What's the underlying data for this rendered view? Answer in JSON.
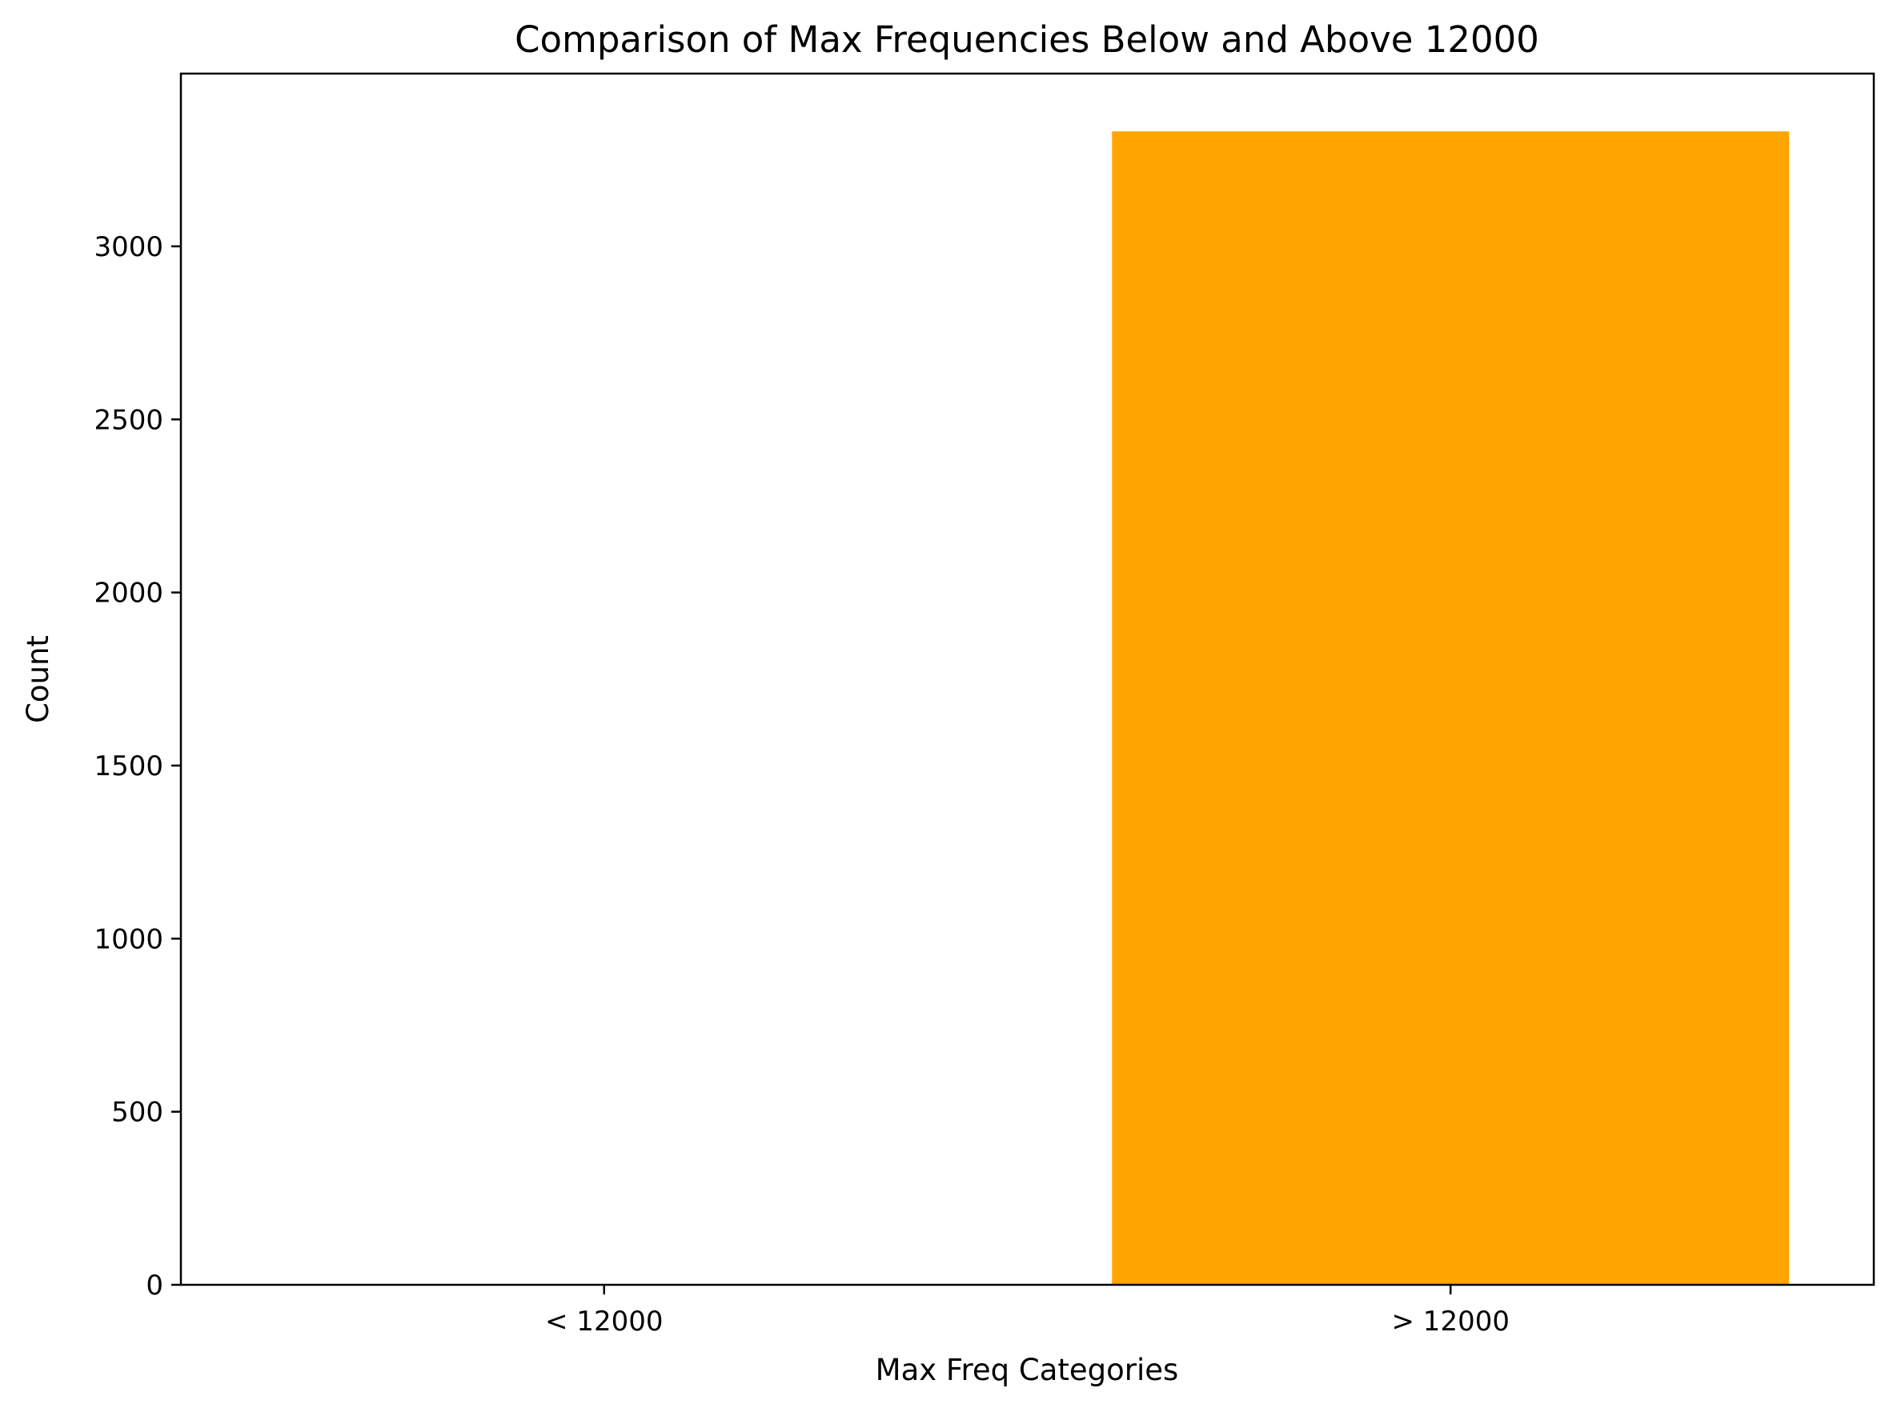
{
  "chart_data": {
    "type": "bar",
    "title": "Comparison of Max Frequencies Below and Above 12000",
    "xlabel": "Max Freq Categories",
    "ylabel": "Count",
    "categories": [
      "< 12000",
      "> 12000"
    ],
    "values": [
      0,
      3332
    ],
    "ylim": [
      0,
      3499
    ],
    "yticks": [
      0,
      500,
      1000,
      1500,
      2000,
      2500,
      3000
    ],
    "grid": false,
    "legend": "none",
    "bar_color": "#FFA500"
  }
}
